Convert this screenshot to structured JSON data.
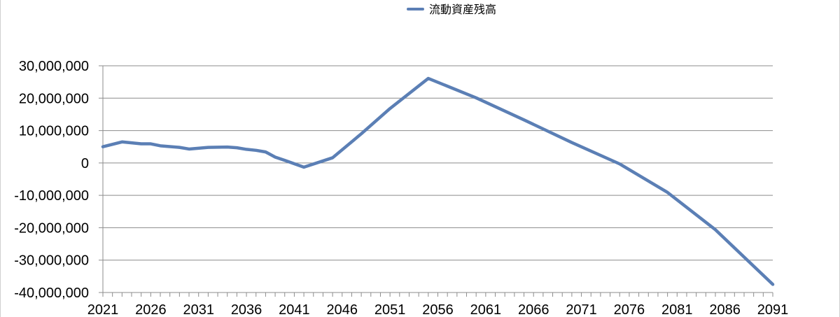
{
  "chart_data": {
    "type": "line",
    "title": "",
    "xlabel": "",
    "ylabel": "",
    "legend": {
      "position": "top",
      "entries": [
        "流動資産残高"
      ]
    },
    "grid": true,
    "xlim": [
      2021,
      2091
    ],
    "ylim": [
      -40000000,
      30000000
    ],
    "x_ticks": [
      2021,
      2026,
      2031,
      2036,
      2041,
      2046,
      2051,
      2056,
      2061,
      2066,
      2071,
      2076,
      2081,
      2086,
      2091
    ],
    "x_tick_labels": [
      "2021",
      "2026",
      "2031",
      "2036",
      "2041",
      "2046",
      "2051",
      "2056",
      "2061",
      "2066",
      "2071",
      "2076",
      "2081",
      "2086",
      "2091"
    ],
    "y_ticks": [
      30000000,
      20000000,
      10000000,
      0,
      -10000000,
      -20000000,
      -30000000,
      -40000000
    ],
    "y_tick_labels": [
      "30,000,000",
      "20,000,000",
      "10,000,000",
      "0",
      "-10,000,000",
      "-20,000,000",
      "-30,000,000",
      "-40,000,000"
    ],
    "series": [
      {
        "name": "流動資産残高",
        "color": "#5b7fb5",
        "x": [
          2021,
          2023,
          2025,
          2026,
          2027,
          2029,
          2030,
          2032,
          2034,
          2035,
          2036,
          2037,
          2038,
          2039,
          2040,
          2042,
          2045,
          2048,
          2051,
          2055,
          2060,
          2065,
          2070,
          2075,
          2080,
          2085,
          2091
        ],
        "y": [
          5000000,
          6500000,
          5900000,
          5900000,
          5300000,
          4800000,
          4300000,
          4800000,
          4900000,
          4700000,
          4200000,
          3900000,
          3400000,
          1800000,
          800000,
          -1300000,
          1600000,
          9000000,
          16800000,
          26100000,
          20100000,
          13300000,
          6300000,
          -300000,
          -9100000,
          -20600000,
          -37500000
        ]
      }
    ]
  }
}
